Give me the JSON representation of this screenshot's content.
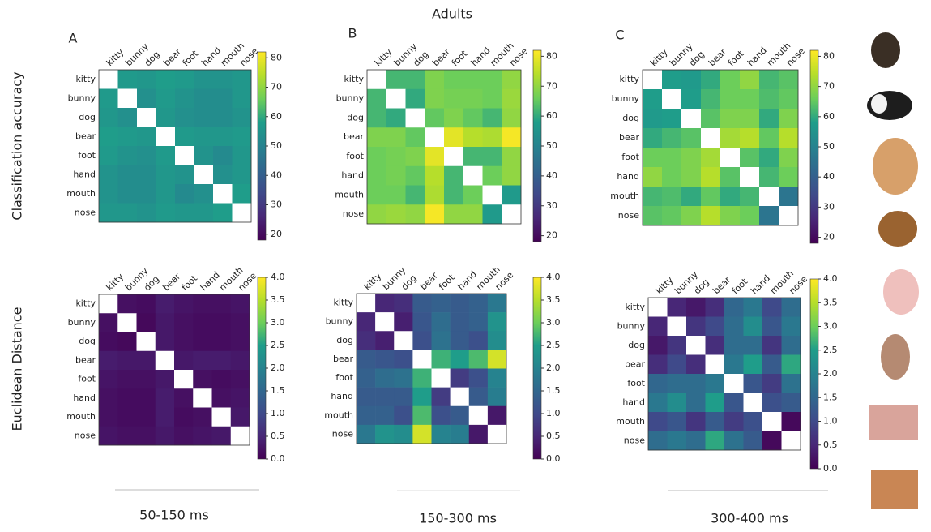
{
  "figure": {
    "title": "Adults",
    "panels": [
      "A",
      "B",
      "C"
    ],
    "rows": [
      "Classification accuracy",
      "Euclidean Distance"
    ],
    "time_windows": [
      "50-150 ms",
      "150-300 ms",
      "300-400 ms"
    ]
  },
  "chart_data": [
    {
      "type": "heatmap",
      "colormap": "viridis",
      "categories": [
        "kitty",
        "bunny",
        "dog",
        "bear",
        "foot",
        "hand",
        "mouth",
        "nose"
      ],
      "values": [
        [
          null,
          57,
          56,
          58,
          57,
          55,
          55,
          56
        ],
        [
          57,
          null,
          54,
          57,
          55,
          53,
          53,
          56
        ],
        [
          56,
          54,
          null,
          56,
          54,
          53,
          53,
          55
        ],
        [
          58,
          57,
          56,
          null,
          57,
          56,
          56,
          57
        ],
        [
          57,
          55,
          54,
          57,
          null,
          55,
          52,
          56
        ],
        [
          55,
          53,
          53,
          56,
          55,
          null,
          54,
          56
        ],
        [
          55,
          53,
          53,
          56,
          52,
          54,
          null,
          58
        ],
        [
          56,
          56,
          55,
          57,
          56,
          56,
          58,
          null
        ]
      ],
      "clim": [
        18,
        82
      ],
      "cticks": [
        20,
        30,
        40,
        50,
        60,
        70,
        80
      ]
    },
    {
      "type": "heatmap",
      "colormap": "viridis",
      "categories": [
        "kitty",
        "bunny",
        "dog",
        "bear",
        "foot",
        "hand",
        "mouth",
        "nose"
      ],
      "values": [
        [
          null,
          62,
          62,
          68,
          66,
          66,
          66,
          70
        ],
        [
          62,
          null,
          60,
          68,
          67,
          67,
          66,
          71
        ],
        [
          62,
          60,
          null,
          65,
          68,
          65,
          62,
          70
        ],
        [
          68,
          68,
          65,
          null,
          79,
          74,
          73,
          81
        ],
        [
          66,
          67,
          68,
          79,
          null,
          62,
          62,
          70
        ],
        [
          66,
          67,
          65,
          74,
          62,
          null,
          66,
          70
        ],
        [
          66,
          66,
          62,
          73,
          62,
          66,
          null,
          57
        ],
        [
          70,
          71,
          70,
          81,
          70,
          70,
          57,
          null
        ]
      ],
      "clim": [
        18,
        82
      ],
      "cticks": [
        20,
        30,
        40,
        50,
        60,
        70,
        80
      ]
    },
    {
      "type": "heatmap",
      "colormap": "viridis",
      "categories": [
        "kitty",
        "bunny",
        "dog",
        "bear",
        "foot",
        "hand",
        "mouth",
        "nose"
      ],
      "values": [
        [
          null,
          58,
          57,
          60,
          66,
          70,
          62,
          64
        ],
        [
          58,
          null,
          58,
          62,
          66,
          66,
          63,
          65
        ],
        [
          57,
          58,
          null,
          64,
          68,
          68,
          60,
          68
        ],
        [
          60,
          62,
          64,
          null,
          72,
          74,
          65,
          74
        ],
        [
          66,
          66,
          68,
          72,
          null,
          64,
          60,
          68
        ],
        [
          70,
          66,
          68,
          74,
          64,
          null,
          62,
          66
        ],
        [
          62,
          63,
          60,
          65,
          60,
          62,
          null,
          46
        ],
        [
          64,
          65,
          68,
          74,
          68,
          66,
          46,
          null
        ]
      ],
      "clim": [
        18,
        82
      ],
      "cticks": [
        20,
        30,
        40,
        50,
        60,
        70,
        80
      ]
    },
    {
      "type": "heatmap",
      "colormap": "viridis",
      "categories": [
        "kitty",
        "bunny",
        "dog",
        "bear",
        "foot",
        "hand",
        "mouth",
        "nose"
      ],
      "values": [
        [
          null,
          0.2,
          0.15,
          0.35,
          0.25,
          0.2,
          0.2,
          0.25
        ],
        [
          0.2,
          null,
          0.1,
          0.3,
          0.2,
          0.15,
          0.15,
          0.2
        ],
        [
          0.15,
          0.1,
          null,
          0.3,
          0.2,
          0.15,
          0.15,
          0.2
        ],
        [
          0.35,
          0.3,
          0.3,
          null,
          0.3,
          0.35,
          0.35,
          0.3
        ],
        [
          0.25,
          0.2,
          0.2,
          0.3,
          null,
          0.2,
          0.15,
          0.2
        ],
        [
          0.2,
          0.15,
          0.15,
          0.35,
          0.2,
          null,
          0.2,
          0.25
        ],
        [
          0.2,
          0.15,
          0.15,
          0.35,
          0.15,
          0.2,
          null,
          0.3
        ],
        [
          0.25,
          0.2,
          0.2,
          0.3,
          0.2,
          0.25,
          0.3,
          null
        ]
      ],
      "clim": [
        0,
        4
      ],
      "cticks": [
        {
          "value": 0,
          "label": "0.0"
        },
        0.5,
        {
          "value": 1,
          "label": "1.0"
        },
        1.5,
        {
          "value": 2,
          "label": "2.0"
        },
        2.5,
        {
          "value": 3,
          "label": "3.0"
        },
        3.5,
        {
          "value": 4,
          "label": "4.0"
        }
      ]
    },
    {
      "type": "heatmap",
      "colormap": "viridis",
      "categories": [
        "kitty",
        "bunny",
        "dog",
        "bear",
        "foot",
        "hand",
        "mouth",
        "nose"
      ],
      "values": [
        [
          null,
          0.5,
          0.6,
          1.3,
          1.4,
          1.3,
          1.4,
          1.8
        ],
        [
          0.5,
          null,
          0.4,
          1.2,
          1.6,
          1.3,
          1.4,
          2.3
        ],
        [
          0.6,
          0.4,
          null,
          1.1,
          1.7,
          1.3,
          1.1,
          2.2
        ],
        [
          1.3,
          1.2,
          1.1,
          null,
          2.7,
          2.5,
          2.8,
          3.7
        ],
        [
          1.4,
          1.6,
          1.7,
          2.7,
          null,
          0.8,
          1.1,
          2.0
        ],
        [
          1.3,
          1.3,
          1.3,
          2.5,
          0.8,
          null,
          1.3,
          1.9
        ],
        [
          1.4,
          1.4,
          1.1,
          2.8,
          1.1,
          1.3,
          null,
          0.3
        ],
        [
          1.8,
          2.3,
          2.2,
          3.7,
          2.0,
          1.9,
          0.3,
          null
        ]
      ],
      "clim": [
        0,
        4
      ],
      "cticks": [
        {
          "value": 0,
          "label": "0.0"
        },
        0.5,
        {
          "value": 1,
          "label": "1.0"
        },
        1.5,
        {
          "value": 2,
          "label": "2.0"
        },
        2.5,
        {
          "value": 3,
          "label": "3.0"
        },
        3.5,
        {
          "value": 4,
          "label": "4.0"
        }
      ]
    },
    {
      "type": "heatmap",
      "colormap": "viridis",
      "categories": [
        "kitty",
        "bunny",
        "dog",
        "bear",
        "foot",
        "hand",
        "mouth",
        "nose"
      ],
      "values": [
        [
          null,
          0.5,
          0.3,
          0.6,
          1.5,
          1.8,
          1.0,
          1.6
        ],
        [
          0.5,
          null,
          0.7,
          1.0,
          1.6,
          2.2,
          1.2,
          1.8
        ],
        [
          0.3,
          0.7,
          null,
          0.6,
          1.6,
          1.6,
          0.7,
          1.6
        ],
        [
          0.6,
          1.0,
          0.6,
          null,
          1.8,
          2.5,
          1.3,
          2.6
        ],
        [
          1.5,
          1.6,
          1.6,
          1.8,
          null,
          1.2,
          0.8,
          1.7
        ],
        [
          1.8,
          2.2,
          1.6,
          2.5,
          1.2,
          null,
          1.1,
          1.3
        ],
        [
          1.0,
          1.2,
          0.7,
          1.3,
          0.8,
          1.1,
          null,
          0.1
        ],
        [
          1.6,
          1.8,
          1.6,
          2.6,
          1.7,
          1.3,
          0.1,
          null
        ]
      ],
      "clim": [
        0,
        4
      ],
      "cticks": [
        {
          "value": 0,
          "label": "0.0"
        },
        0.5,
        {
          "value": 1,
          "label": "1.0"
        },
        1.5,
        {
          "value": 2,
          "label": "2.0"
        },
        2.5,
        {
          "value": 3,
          "label": "3.0"
        },
        3.5,
        {
          "value": 4,
          "label": "4.0"
        }
      ]
    }
  ]
}
